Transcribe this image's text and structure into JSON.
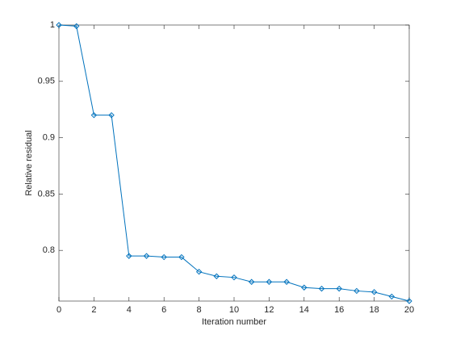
{
  "chart_data": {
    "type": "line",
    "x_label": "Iteration number",
    "y_label": "Relative residual",
    "x": [
      0,
      1,
      2,
      3,
      4,
      5,
      6,
      7,
      8,
      9,
      10,
      11,
      12,
      13,
      14,
      15,
      16,
      17,
      18,
      19,
      20
    ],
    "series": [
      {
        "color": "#0072bd",
        "marker": "diamond",
        "values": [
          1,
          0.999,
          0.92,
          0.92,
          0.795,
          0.795,
          0.794,
          0.794,
          0.781,
          0.777,
          0.776,
          0.772,
          0.772,
          0.772,
          0.767,
          0.766,
          0.766,
          0.764,
          0.763,
          0.759,
          0.755
        ]
      }
    ],
    "xlim": [
      0,
      20
    ],
    "ylim": [
      0.755,
      1
    ],
    "xticks": [
      0,
      2,
      4,
      6,
      8,
      10,
      12,
      14,
      16,
      18,
      20
    ],
    "yticks": [
      0.8,
      0.85,
      0.9,
      0.95,
      1
    ]
  }
}
